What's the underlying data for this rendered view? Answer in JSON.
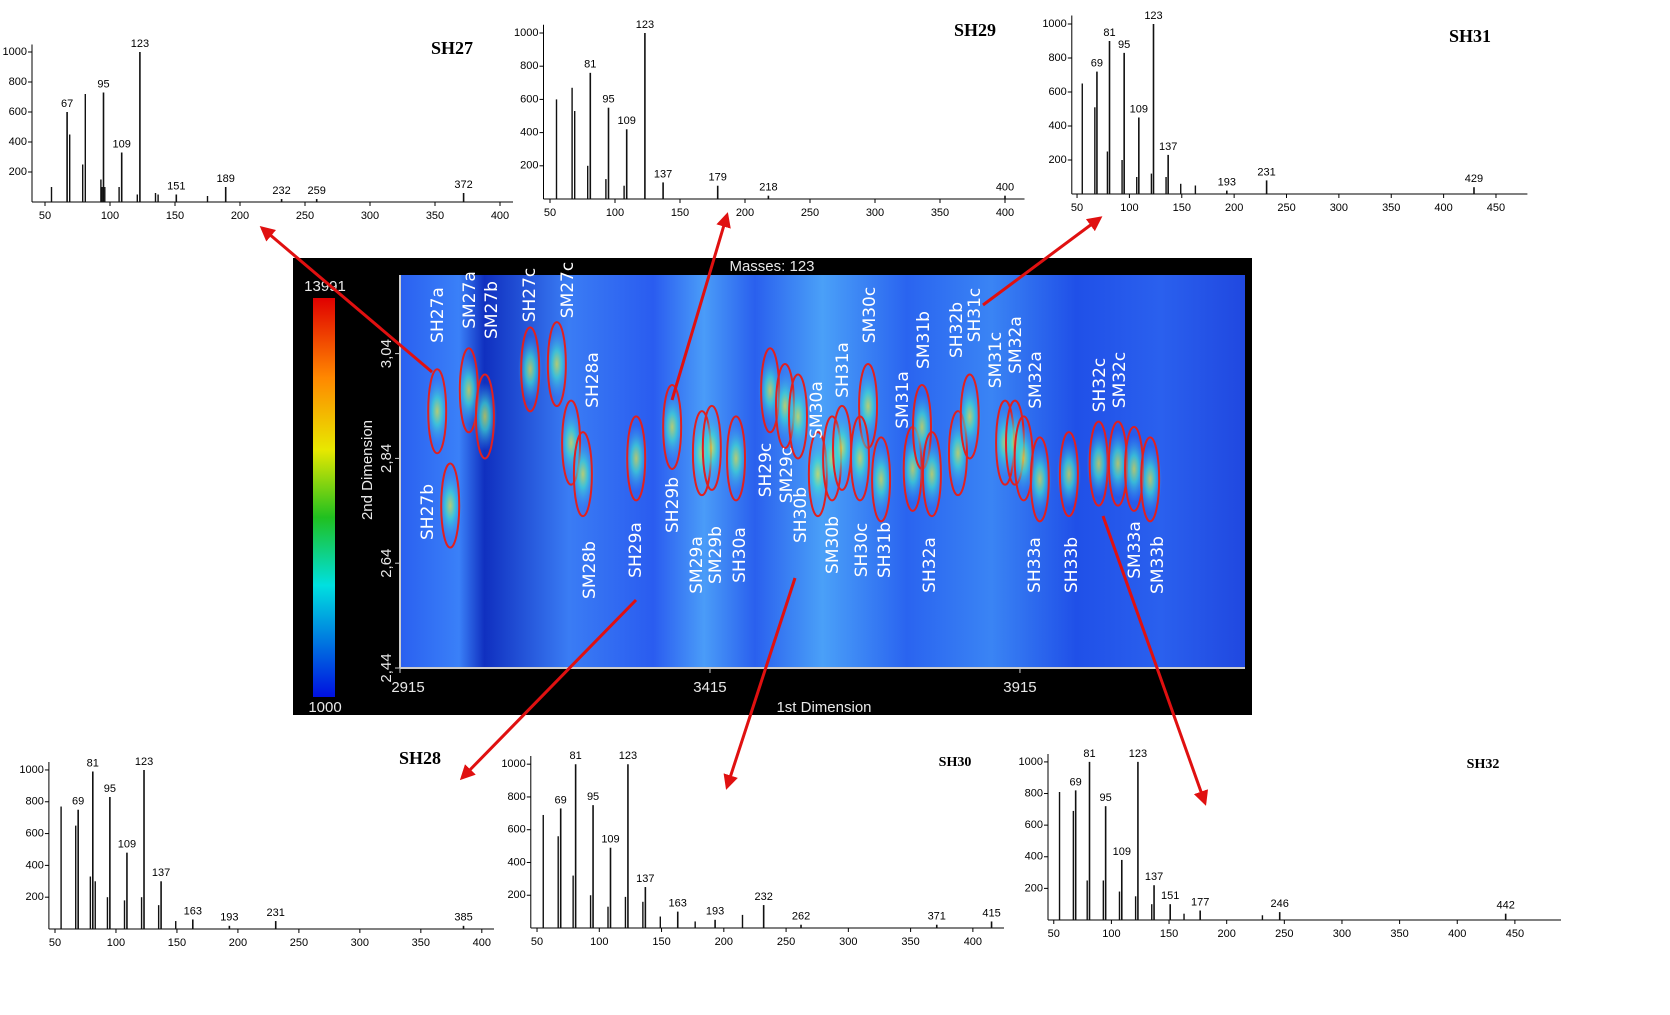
{
  "chart_data": [
    {
      "type": "spectrum",
      "title": "SH27",
      "x": [
        67,
        95,
        109,
        123,
        151,
        189,
        232,
        259,
        372
      ],
      "values": [
        600,
        730,
        330,
        1000,
        50,
        100,
        20,
        20,
        60
      ],
      "minor_x": [
        55,
        69,
        79,
        81,
        93,
        94,
        96,
        107,
        121,
        135,
        137,
        175
      ],
      "minor_values": [
        100,
        450,
        250,
        720,
        150,
        100,
        100,
        100,
        50,
        60,
        50,
        40
      ],
      "xlim": [
        40,
        410
      ],
      "xticks": [
        50,
        100,
        150,
        200,
        250,
        300,
        350,
        400
      ],
      "ylim": [
        0,
        1050
      ],
      "yticks": [
        200,
        400,
        600,
        800,
        1000
      ]
    },
    {
      "type": "spectrum",
      "title": "SH29",
      "x": [
        81,
        95,
        109,
        123,
        137,
        179,
        218,
        400
      ],
      "values": [
        760,
        550,
        420,
        1000,
        100,
        80,
        20,
        20
      ],
      "minor_x": [
        55,
        67,
        69,
        79,
        93,
        107
      ],
      "minor_values": [
        600,
        670,
        530,
        200,
        120,
        80
      ],
      "xlim": [
        45,
        415
      ],
      "xticks": [
        50,
        100,
        150,
        200,
        250,
        300,
        350,
        400
      ],
      "ylim": [
        0,
        1050
      ],
      "yticks": [
        200,
        400,
        600,
        800,
        1000
      ]
    },
    {
      "type": "spectrum",
      "title": "SH31",
      "x": [
        69,
        81,
        95,
        109,
        123,
        137,
        193,
        231,
        429
      ],
      "values": [
        720,
        900,
        830,
        450,
        1000,
        230,
        20,
        80,
        40
      ],
      "minor_x": [
        55,
        67,
        79,
        93,
        107,
        121,
        135,
        149,
        163
      ],
      "minor_values": [
        650,
        510,
        250,
        200,
        100,
        120,
        100,
        60,
        50
      ],
      "xlim": [
        45,
        480
      ],
      "xticks": [
        50,
        100,
        150,
        200,
        250,
        300,
        350,
        400,
        450
      ],
      "ylim": [
        0,
        1050
      ],
      "yticks": [
        200,
        400,
        600,
        800,
        1000
      ]
    },
    {
      "type": "spectrum",
      "title": "SH28",
      "x": [
        69,
        81,
        95,
        109,
        123,
        137,
        163,
        193,
        231,
        385
      ],
      "values": [
        750,
        990,
        830,
        480,
        1000,
        300,
        60,
        20,
        50,
        20
      ],
      "minor_x": [
        55,
        67,
        79,
        83,
        93,
        107,
        121,
        135,
        149
      ],
      "minor_values": [
        770,
        650,
        330,
        300,
        200,
        180,
        200,
        150,
        50
      ],
      "xlim": [
        45,
        410
      ],
      "xticks": [
        50,
        100,
        150,
        200,
        250,
        300,
        350,
        400
      ],
      "ylim": [
        0,
        1050
      ],
      "yticks": [
        200,
        400,
        600,
        800,
        1000
      ]
    },
    {
      "type": "spectrum",
      "title": "SH30",
      "x": [
        69,
        81,
        95,
        109,
        123,
        137,
        163,
        193,
        232,
        262,
        371,
        415
      ],
      "values": [
        730,
        1000,
        750,
        490,
        1000,
        250,
        100,
        50,
        140,
        20,
        20,
        40
      ],
      "minor_x": [
        55,
        67,
        79,
        93,
        107,
        121,
        135,
        149,
        177,
        215
      ],
      "minor_values": [
        690,
        560,
        320,
        200,
        130,
        190,
        160,
        70,
        40,
        80
      ],
      "xlim": [
        45,
        425
      ],
      "xticks": [
        50,
        100,
        150,
        200,
        250,
        300,
        350,
        400
      ],
      "ylim": [
        0,
        1050
      ],
      "yticks": [
        200,
        400,
        600,
        800,
        1000
      ]
    },
    {
      "type": "spectrum",
      "title": "SH32",
      "x": [
        69,
        81,
        95,
        109,
        123,
        137,
        151,
        177,
        246,
        442
      ],
      "values": [
        820,
        1000,
        720,
        380,
        1000,
        220,
        100,
        60,
        50,
        40
      ],
      "minor_x": [
        55,
        67,
        79,
        93,
        107,
        121,
        135,
        163,
        231
      ],
      "minor_values": [
        810,
        690,
        250,
        250,
        180,
        150,
        100,
        40,
        30
      ],
      "xlim": [
        45,
        490
      ],
      "xticks": [
        50,
        100,
        150,
        200,
        250,
        300,
        350,
        400,
        450
      ],
      "ylim": [
        0,
        1050
      ],
      "yticks": [
        200,
        400,
        600,
        800,
        1000
      ]
    },
    {
      "type": "heatmap",
      "title": "Masses: 123",
      "xlabel": "1st Dimension",
      "ylabel": "2nd Dimension",
      "xlim": [
        2915,
        4278
      ],
      "xticks": [
        2915,
        3415,
        3915
      ],
      "ylim": [
        2.44,
        3.19
      ],
      "yticks": [
        {
          "value": 2.44,
          "label": "2,44"
        },
        {
          "value": 2.64,
          "label": "2,64"
        },
        {
          "value": 2.84,
          "label": "2,84"
        },
        {
          "value": 3.04,
          "label": "3,04"
        }
      ],
      "colorbar_ticks": [
        1000,
        13991
      ],
      "spots": [
        {
          "label": "SH27a",
          "x": 2975,
          "y": 2.93
        },
        {
          "label": "SH27b",
          "x": 2996,
          "y": 2.75
        },
        {
          "label": "SM27a",
          "x": 3026,
          "y": 2.97
        },
        {
          "label": "SM27b",
          "x": 3052,
          "y": 2.92
        },
        {
          "label": "SH27c",
          "x": 3125,
          "y": 3.01
        },
        {
          "label": "SM27c",
          "x": 3168,
          "y": 3.02
        },
        {
          "label": "SH28a",
          "x": 3191,
          "y": 2.87
        },
        {
          "label": "SM28b",
          "x": 3210,
          "y": 2.81
        },
        {
          "label": "SH29a",
          "x": 3296,
          "y": 2.84
        },
        {
          "label": "SH29b",
          "x": 3354,
          "y": 2.9
        },
        {
          "label": "SM29a",
          "x": 3402,
          "y": 2.85
        },
        {
          "label": "SM29b",
          "x": 3418,
          "y": 2.86
        },
        {
          "label": "SH30a",
          "x": 3457,
          "y": 2.84
        },
        {
          "label": "SH29c",
          "x": 3512,
          "y": 2.97
        },
        {
          "label": "SM29c",
          "x": 3536,
          "y": 2.94
        },
        {
          "label": "SH30b",
          "x": 3557,
          "y": 2.92
        },
        {
          "label": "SM30a",
          "x": 3589,
          "y": 2.81
        },
        {
          "label": "SM30b",
          "x": 3612,
          "y": 2.84
        },
        {
          "label": "SH31a",
          "x": 3628,
          "y": 2.86
        },
        {
          "label": "SM30c",
          "x": 3670,
          "y": 2.94
        },
        {
          "label": "SH30c",
          "x": 3657,
          "y": 2.84
        },
        {
          "label": "SH31b",
          "x": 3691,
          "y": 2.8
        },
        {
          "label": "SM31a",
          "x": 3742,
          "y": 2.82
        },
        {
          "label": "SM31b",
          "x": 3757,
          "y": 2.9
        },
        {
          "label": "SH32a",
          "x": 3773,
          "y": 2.81
        },
        {
          "label": "SH32b",
          "x": 3815,
          "y": 2.85
        },
        {
          "label": "SH31c",
          "x": 3834,
          "y": 2.92
        },
        {
          "label": "SM31c",
          "x": 3891,
          "y": 2.87
        },
        {
          "label": "SM32a",
          "x": 3907,
          "y": 2.87
        },
        {
          "label": "SM32a",
          "x": 3921,
          "y": 2.84
        },
        {
          "label": "SH33a",
          "x": 3947,
          "y": 2.8
        },
        {
          "label": "SH33b",
          "x": 3994,
          "y": 2.81
        },
        {
          "label": "SH32c",
          "x": 4042,
          "y": 2.83
        },
        {
          "label": "SM32c",
          "x": 4073,
          "y": 2.83
        },
        {
          "label": "SM33a",
          "x": 4099,
          "y": 2.82
        },
        {
          "label": "SM33b",
          "x": 4125,
          "y": 2.8
        }
      ]
    }
  ]
}
